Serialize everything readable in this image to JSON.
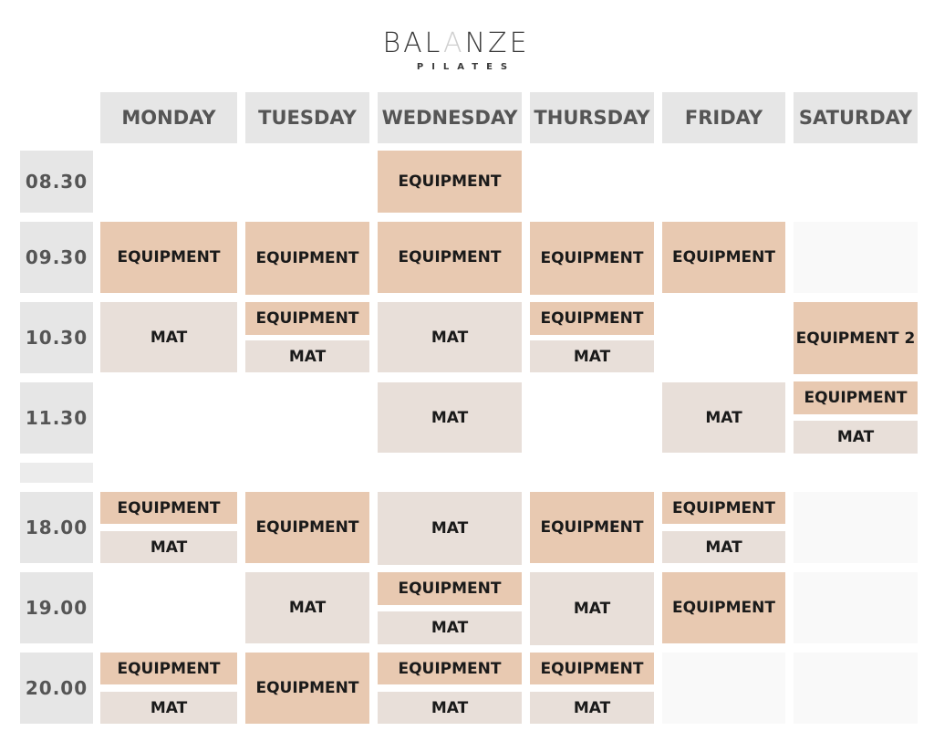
{
  "logo": {
    "brand_left": "BAL",
    "brand_mid": "A",
    "brand_right": "NZE",
    "subtitle": "PILATES"
  },
  "days": [
    "MONDAY",
    "TUESDAY",
    "WEDNESDAY",
    "THURSDAY",
    "FRIDAY",
    "SATURDAY"
  ],
  "times": [
    "08.30",
    "09.30",
    "10.30",
    "11.30",
    "18.00",
    "19.00",
    "20.00"
  ],
  "labels": {
    "equipment": "EQUIPMENT",
    "mat": "MAT",
    "equipment2": "EQUIPMENT 2"
  },
  "colors": {
    "equipment": "#e8c9b1",
    "mat": "#e8dfd9",
    "header": "#e6e6e6"
  },
  "schedule": {
    "08.30": {
      "WEDNESDAY": [
        "EQUIPMENT"
      ]
    },
    "09.30": {
      "MONDAY": [
        "EQUIPMENT"
      ],
      "TUESDAY": [
        "EQUIPMENT"
      ],
      "WEDNESDAY": [
        "EQUIPMENT"
      ],
      "THURSDAY": [
        "EQUIPMENT"
      ],
      "FRIDAY": [
        "EQUIPMENT"
      ]
    },
    "10.30": {
      "MONDAY": [
        "MAT"
      ],
      "TUESDAY": [
        "EQUIPMENT",
        "MAT"
      ],
      "WEDNESDAY": [
        "MAT"
      ],
      "THURSDAY": [
        "EQUIPMENT",
        "MAT"
      ],
      "SATURDAY": [
        "EQUIPMENT 2"
      ]
    },
    "11.30": {
      "WEDNESDAY": [
        "MAT"
      ],
      "FRIDAY": [
        "MAT"
      ],
      "SATURDAY": [
        "EQUIPMENT",
        "MAT"
      ]
    },
    "18.00": {
      "MONDAY": [
        "EQUIPMENT",
        "MAT"
      ],
      "TUESDAY": [
        "EQUIPMENT"
      ],
      "WEDNESDAY": [
        "MAT"
      ],
      "THURSDAY": [
        "EQUIPMENT"
      ],
      "FRIDAY": [
        "EQUIPMENT",
        "MAT"
      ]
    },
    "19.00": {
      "TUESDAY": [
        "MAT"
      ],
      "WEDNESDAY": [
        "EQUIPMENT",
        "MAT"
      ],
      "THURSDAY": [
        "MAT"
      ],
      "FRIDAY": [
        "EQUIPMENT"
      ]
    },
    "20.00": {
      "MONDAY": [
        "EQUIPMENT",
        "MAT"
      ],
      "TUESDAY": [
        "EQUIPMENT"
      ],
      "WEDNESDAY": [
        "EQUIPMENT",
        "MAT"
      ],
      "THURSDAY": [
        "EQUIPMENT",
        "MAT"
      ]
    }
  }
}
